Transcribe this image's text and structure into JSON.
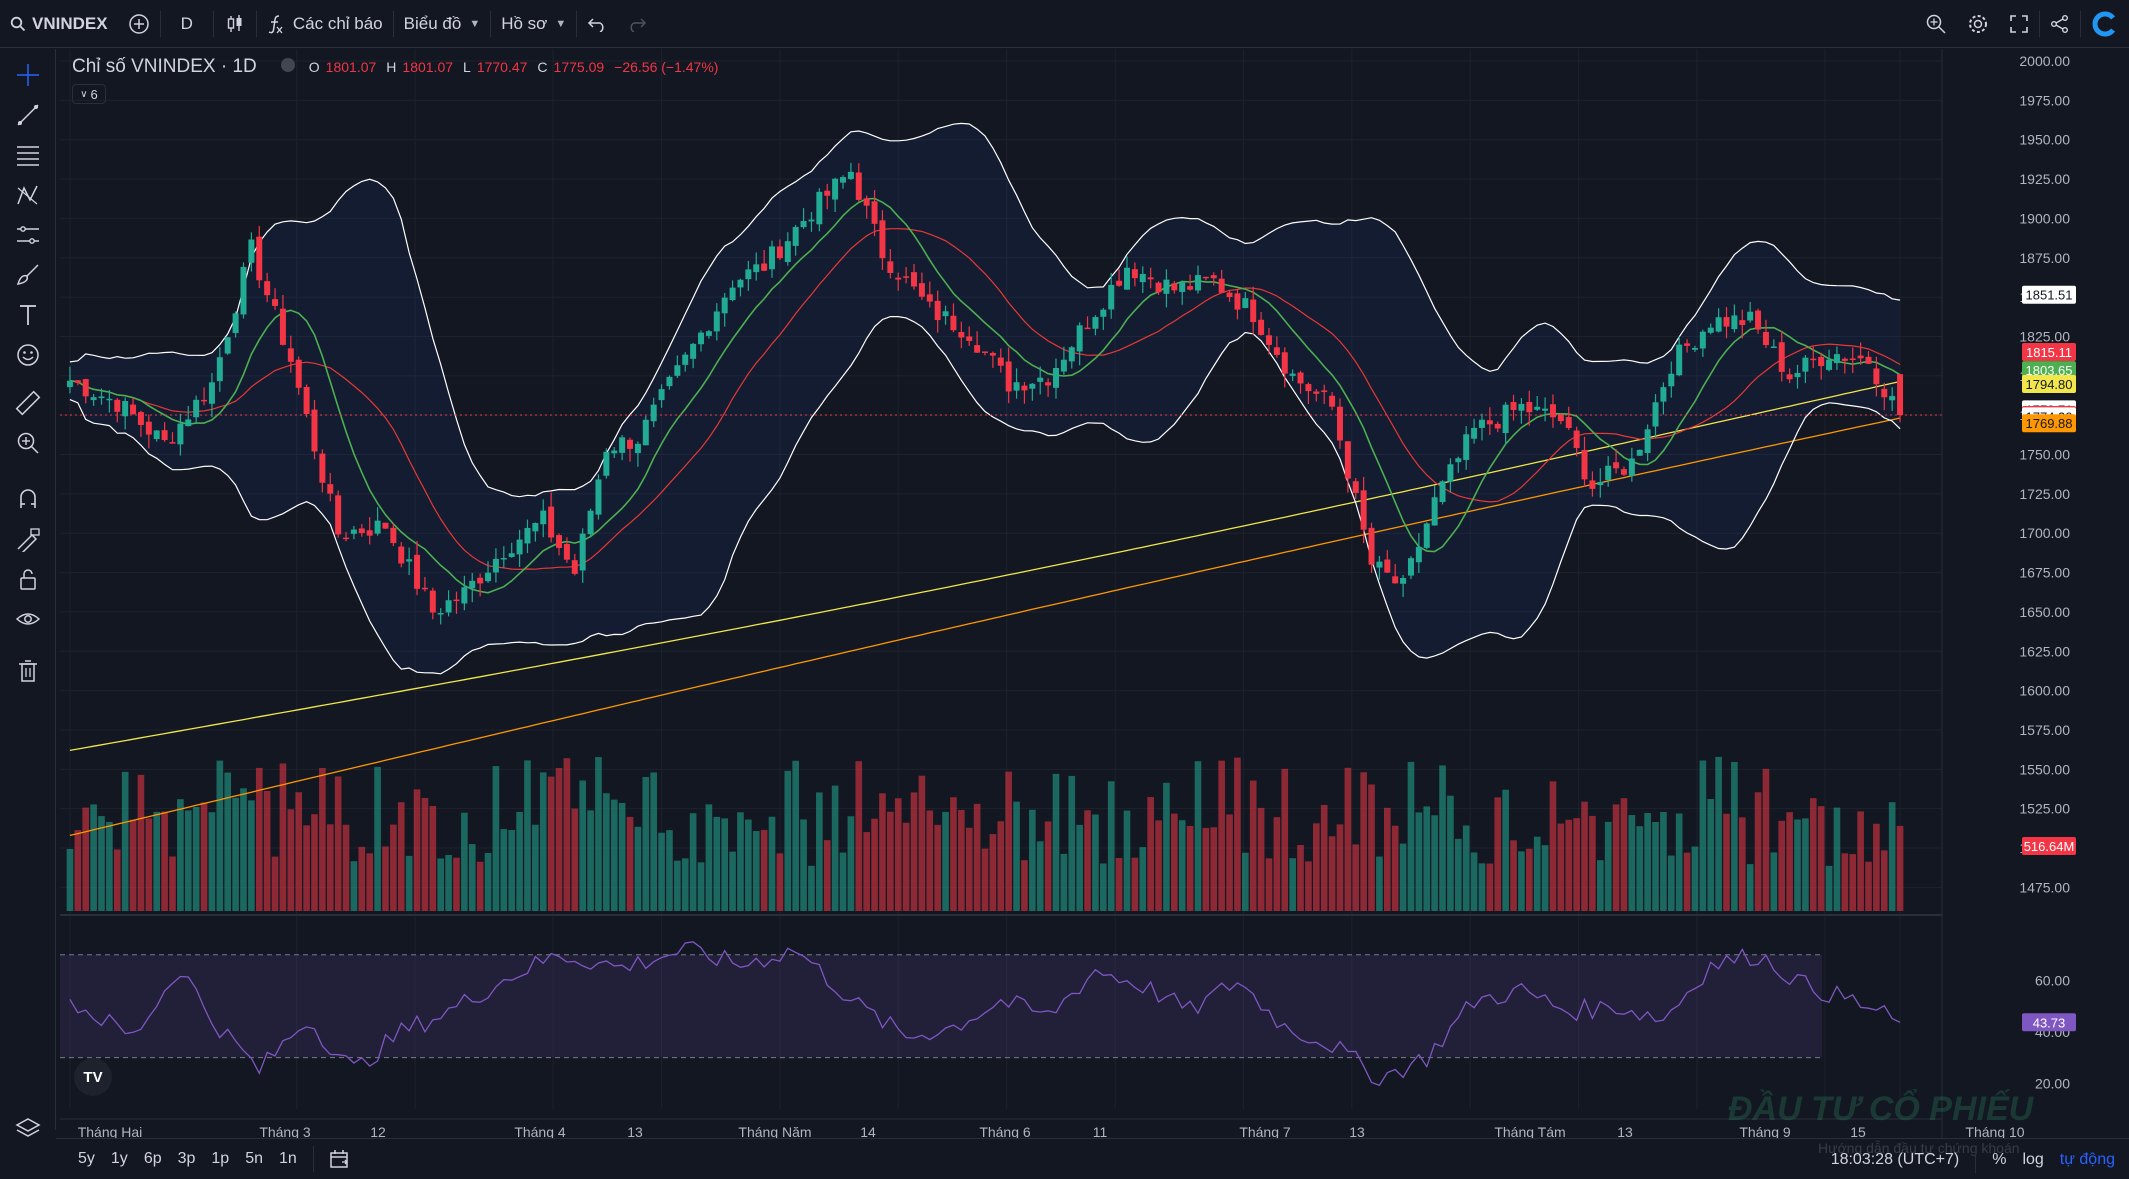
{
  "toolbar": {
    "symbol": "VNINDEX",
    "interval": "D",
    "indicators_label": "Các chỉ báo",
    "chart_menu_label": "Biểu đồ",
    "profile_menu_label": "Hồ sơ"
  },
  "legend": {
    "title": "Chỉ số VNINDEX · 1D",
    "open_key": "O",
    "open": "1801.07",
    "high_key": "H",
    "high": "1801.07",
    "low_key": "L",
    "low": "1770.47",
    "close_key": "C",
    "close": "1775.09",
    "change": "−26.56 (−1.47%)",
    "indicator_count": "6"
  },
  "colors": {
    "background": "#131722",
    "up": "#22ab94",
    "down": "#f23645",
    "bollinger": "#ffffff",
    "ma_fast": "#4caf50",
    "ma_mid": "#e53935",
    "ma_slow": "#f2e64b",
    "ma_long": "#ff9800",
    "rsi": "#7e57c2"
  },
  "chart_data": {
    "type": "candlestick",
    "symbol": "VNINDEX",
    "interval": "1D",
    "ylim": [
      1460,
      2000
    ],
    "y_ticks": [
      "2000.00",
      "1975.00",
      "1950.00",
      "1925.00",
      "1900.00",
      "1875.00",
      "1850.00",
      "1825.00",
      "1800.00",
      "1775.00",
      "1750.00",
      "1725.00",
      "1700.00",
      "1675.00",
      "1650.00",
      "1625.00",
      "1600.00",
      "1575.00",
      "1550.00",
      "1525.00",
      "1500.00",
      "1475.00"
    ],
    "x_ticks": [
      "Tháng Hai",
      "Tháng 3",
      "12",
      "Tháng 4",
      "13",
      "Tháng Năm",
      "14",
      "Tháng 6",
      "11",
      "Tháng 7",
      "13",
      "Tháng Tám",
      "13",
      "Tháng 9",
      "15",
      "Tháng 10"
    ],
    "price_labels": [
      {
        "value": "1851.51",
        "color": "#ffffff",
        "text_color": "#131722"
      },
      {
        "value": "1815.11",
        "color": "#f23645",
        "text_color": "#ffffff"
      },
      {
        "value": "1803.65",
        "color": "#4caf50",
        "text_color": "#ffffff"
      },
      {
        "value": "1794.80",
        "color": "#f2e64b",
        "text_color": "#131722"
      },
      {
        "value": "1778.71",
        "color": "#ffffff",
        "text_color": "#131722"
      },
      {
        "value": "1775.09",
        "color": "#f23645",
        "text_color": "#ffffff"
      },
      {
        "value": "1774.20",
        "color": "#ffffff",
        "text_color": "#131722"
      },
      {
        "value": "1769.88",
        "color": "#ff9800",
        "text_color": "#131722"
      }
    ],
    "close_anchors": [
      [
        0,
        1797
      ],
      [
        6,
        1783
      ],
      [
        12,
        1757
      ],
      [
        18,
        1795
      ],
      [
        23,
        1880
      ],
      [
        28,
        1810
      ],
      [
        34,
        1700
      ],
      [
        40,
        1705
      ],
      [
        46,
        1650
      ],
      [
        50,
        1662
      ],
      [
        55,
        1690
      ],
      [
        60,
        1708
      ],
      [
        64,
        1675
      ],
      [
        68,
        1755
      ],
      [
        72,
        1760
      ],
      [
        78,
        1810
      ],
      [
        84,
        1860
      ],
      [
        88,
        1870
      ],
      [
        94,
        1905
      ],
      [
        99,
        1930
      ],
      [
        103,
        1878
      ],
      [
        109,
        1842
      ],
      [
        114,
        1828
      ],
      [
        119,
        1795
      ],
      [
        124,
        1800
      ],
      [
        129,
        1835
      ],
      [
        134,
        1870
      ],
      [
        140,
        1855
      ],
      [
        145,
        1860
      ],
      [
        150,
        1840
      ],
      [
        155,
        1800
      ],
      [
        160,
        1780
      ],
      [
        165,
        1680
      ],
      [
        169,
        1665
      ],
      [
        173,
        1720
      ],
      [
        178,
        1765
      ],
      [
        184,
        1780
      ],
      [
        189,
        1772
      ],
      [
        193,
        1730
      ],
      [
        198,
        1745
      ],
      [
        203,
        1808
      ],
      [
        208,
        1835
      ],
      [
        213,
        1835
      ],
      [
        218,
        1800
      ],
      [
        223,
        1815
      ],
      [
        228,
        1810
      ],
      [
        232,
        1775
      ]
    ],
    "volume_label": "516.64M",
    "rsi": {
      "ticks": [
        "60.00",
        "40.00",
        "20.00"
      ],
      "current": "43.73",
      "upper": 70,
      "lower": 30,
      "anchors": [
        [
          0,
          52
        ],
        [
          8,
          38
        ],
        [
          14,
          65
        ],
        [
          18,
          45
        ],
        [
          24,
          25
        ],
        [
          30,
          45
        ],
        [
          36,
          25
        ],
        [
          42,
          40
        ],
        [
          48,
          48
        ],
        [
          56,
          62
        ],
        [
          62,
          70
        ],
        [
          70,
          65
        ],
        [
          78,
          72
        ],
        [
          85,
          66
        ],
        [
          92,
          72
        ],
        [
          100,
          50
        ],
        [
          106,
          38
        ],
        [
          112,
          42
        ],
        [
          118,
          52
        ],
        [
          124,
          46
        ],
        [
          130,
          64
        ],
        [
          136,
          58
        ],
        [
          142,
          48
        ],
        [
          148,
          60
        ],
        [
          154,
          42
        ],
        [
          160,
          35
        ],
        [
          166,
          22
        ],
        [
          172,
          30
        ],
        [
          178,
          52
        ],
        [
          184,
          56
        ],
        [
          190,
          48
        ],
        [
          196,
          50
        ],
        [
          202,
          45
        ],
        [
          208,
          66
        ],
        [
          214,
          70
        ],
        [
          220,
          58
        ],
        [
          226,
          52
        ],
        [
          232,
          43.7
        ]
      ]
    }
  },
  "left_tools": [
    "crosshair-icon",
    "trend-line-icon",
    "fib-icon",
    "pattern-icon",
    "prediction-icon",
    "brush-icon",
    "text-icon",
    "emoji-icon",
    "ruler-icon",
    "zoom-in-icon",
    "magnet-icon",
    "lock-drawing-icon",
    "unlock-icon",
    "eye-icon",
    "trash-icon"
  ],
  "bottom": {
    "ranges": [
      "5y",
      "1y",
      "6p",
      "3p",
      "1p",
      "5n",
      "1n"
    ],
    "time": "18:03:28 (UTC+7)",
    "percent": "%",
    "log": "log",
    "auto": "tự động"
  },
  "watermark": {
    "text": "ĐẦU TƯ CỔ PHIẾU",
    "subtext": "Hướng dẫn đầu tư chứng khoán"
  }
}
